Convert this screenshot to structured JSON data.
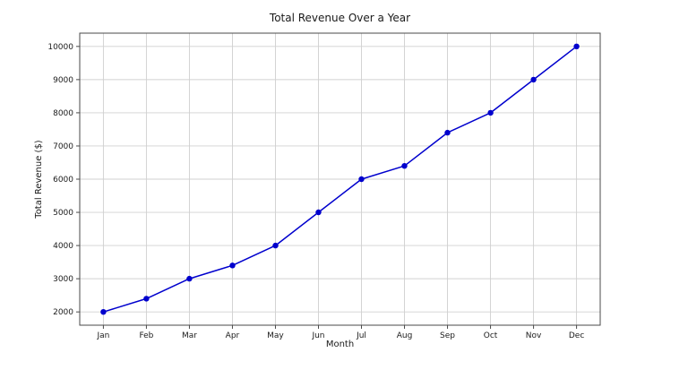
{
  "chart_data": {
    "type": "line",
    "title": "Total Revenue Over a Year",
    "xlabel": "Month",
    "ylabel": "Total Revenue ($)",
    "categories": [
      "Jan",
      "Feb",
      "Mar",
      "Apr",
      "May",
      "Jun",
      "Jul",
      "Aug",
      "Sep",
      "Oct",
      "Nov",
      "Dec"
    ],
    "series": [
      {
        "name": "Total Revenue",
        "values": [
          2000,
          2400,
          3000,
          3400,
          4000,
          5000,
          6000,
          6400,
          7400,
          8000,
          9000,
          10000
        ]
      }
    ],
    "yticks": [
      2000,
      3000,
      4000,
      5000,
      6000,
      7000,
      8000,
      9000,
      10000
    ],
    "ylim": [
      1600,
      10400
    ],
    "grid": true,
    "legend": "none",
    "colors": {
      "line": "#0000cd",
      "marker": "#0000cd",
      "grid": "#d0d0d0",
      "spine": "#4a4a4a",
      "text": "#1a1a1a",
      "background": "#ffffff"
    }
  }
}
